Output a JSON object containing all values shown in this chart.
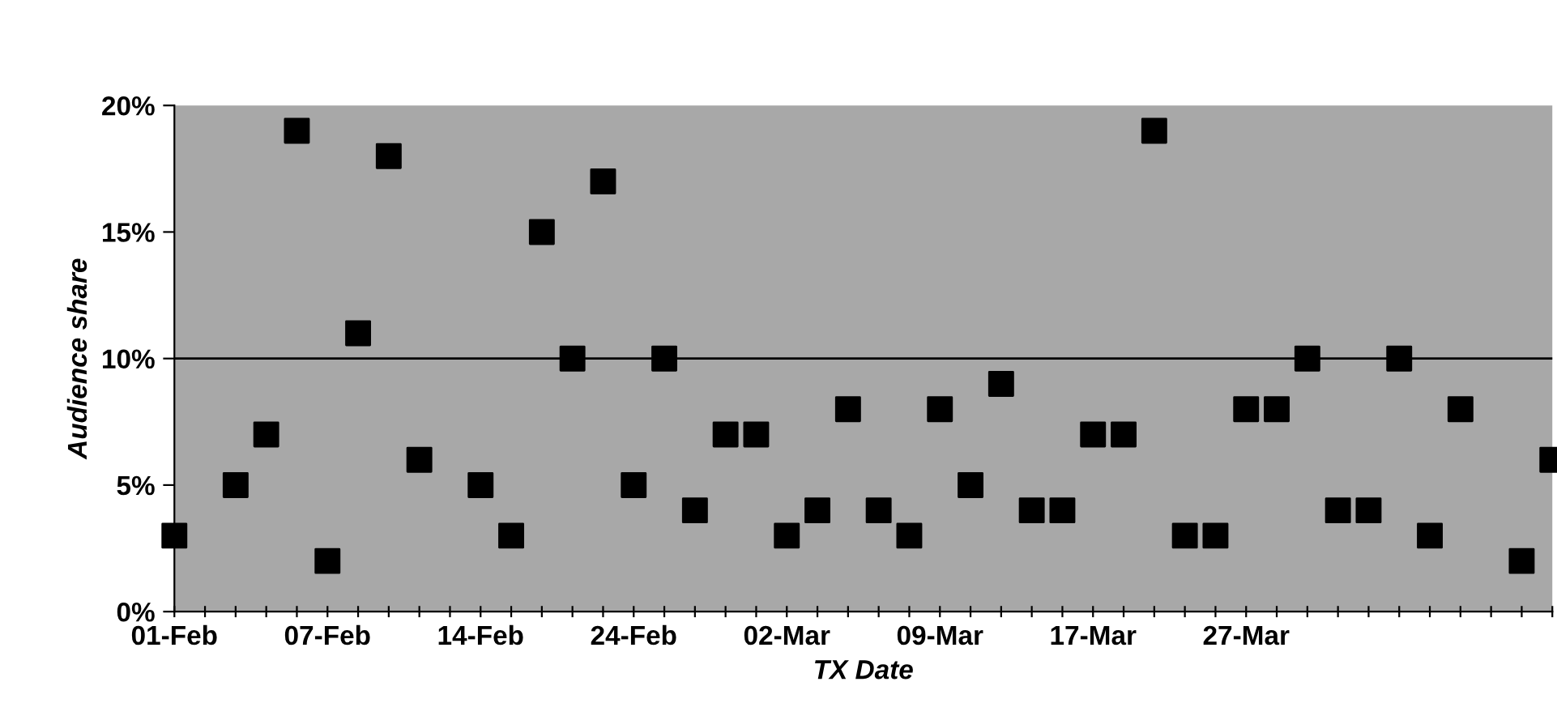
{
  "chart_data": {
    "type": "scatter",
    "xlabel": "TX Date",
    "ylabel": "Audience share",
    "categories": [
      "01-Feb",
      null,
      null,
      null,
      null,
      "07-Feb",
      null,
      null,
      null,
      null,
      "14-Feb",
      null,
      null,
      null,
      null,
      "24-Feb",
      null,
      null,
      null,
      null,
      "02-Mar",
      null,
      null,
      null,
      null,
      "09-Mar",
      null,
      null,
      null,
      null,
      "17-Mar",
      null,
      null,
      null,
      null,
      "27-Mar",
      null,
      null,
      null,
      null,
      null,
      null,
      null,
      null,
      null,
      null
    ],
    "series": [
      {
        "color": "#000000",
        "values": [
          3,
          null,
          5,
          7,
          19,
          2,
          11,
          18,
          6,
          null,
          5,
          3,
          15,
          10,
          17,
          5,
          10,
          4,
          7,
          7,
          3,
          4,
          8,
          4,
          3,
          8,
          5,
          9,
          4,
          4,
          7,
          7,
          19,
          3,
          3,
          8,
          8,
          10,
          4,
          4,
          10,
          3,
          8,
          null,
          2,
          6
        ]
      }
    ],
    "marker": "square",
    "ylim": [
      0,
      20
    ],
    "yticks": [
      {
        "value": 0,
        "label": "0%"
      },
      {
        "value": 5,
        "label": "5%"
      },
      {
        "value": 10,
        "label": "10%"
      },
      {
        "value": 15,
        "label": "15%"
      },
      {
        "value": 20,
        "label": "20%"
      }
    ],
    "ref_lines": [
      {
        "axis": "y",
        "value": 10,
        "color": "#000000"
      }
    ],
    "grid": false
  }
}
